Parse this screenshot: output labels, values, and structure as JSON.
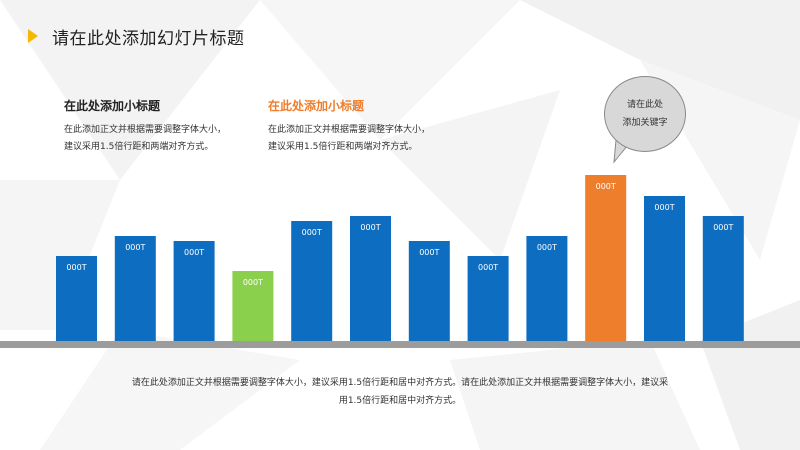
{
  "title": "请在此处添加幻灯片标题",
  "block_left": {
    "subtitle": "在此处添加小标题",
    "body_line1": "在此添加正文并根据需要调整字体大小，",
    "body_line2": "建议采用1.5倍行距和两端对齐方式。"
  },
  "block_right": {
    "subtitle": "在此处添加小标题",
    "body_line1": "在此添加正文并根据需要调整字体大小，",
    "body_line2": "建议采用1.5倍行距和两端对齐方式。"
  },
  "bubble": {
    "line1": "请在此处",
    "line2": "添加关键字"
  },
  "footer": {
    "line1": "请在此处添加正文并根据需要调整字体大小，建议采用1.5倍行距和居中对齐方式。请在此处添加正文并根据需要调整字体大小，建议采",
    "line2": "用1.5倍行距和居中对齐方式。"
  },
  "colors": {
    "blue": "#0d6dc1",
    "green": "#8bd04d",
    "orange": "#ee7d2c",
    "accent_title": "#ee7d2c",
    "arrow": "#f5b800"
  },
  "chart_data": {
    "type": "bar",
    "categories": [
      "",
      "",
      "",
      "",
      "",
      "",
      "",
      "",
      "",
      "",
      "",
      ""
    ],
    "values": [
      85,
      105,
      100,
      70,
      120,
      125,
      100,
      85,
      105,
      166,
      145,
      125
    ],
    "labels": [
      "000T",
      "000T",
      "000T",
      "000T",
      "000T",
      "000T",
      "000T",
      "000T",
      "000T",
      "000T",
      "000T",
      "000T"
    ],
    "bar_colors": [
      "blue",
      "blue",
      "blue",
      "green",
      "blue",
      "blue",
      "blue",
      "blue",
      "blue",
      "orange",
      "blue",
      "blue"
    ],
    "title": "",
    "xlabel": "",
    "ylabel": "",
    "ylim": [
      0,
      170
    ],
    "grid": false,
    "legend": "none"
  }
}
